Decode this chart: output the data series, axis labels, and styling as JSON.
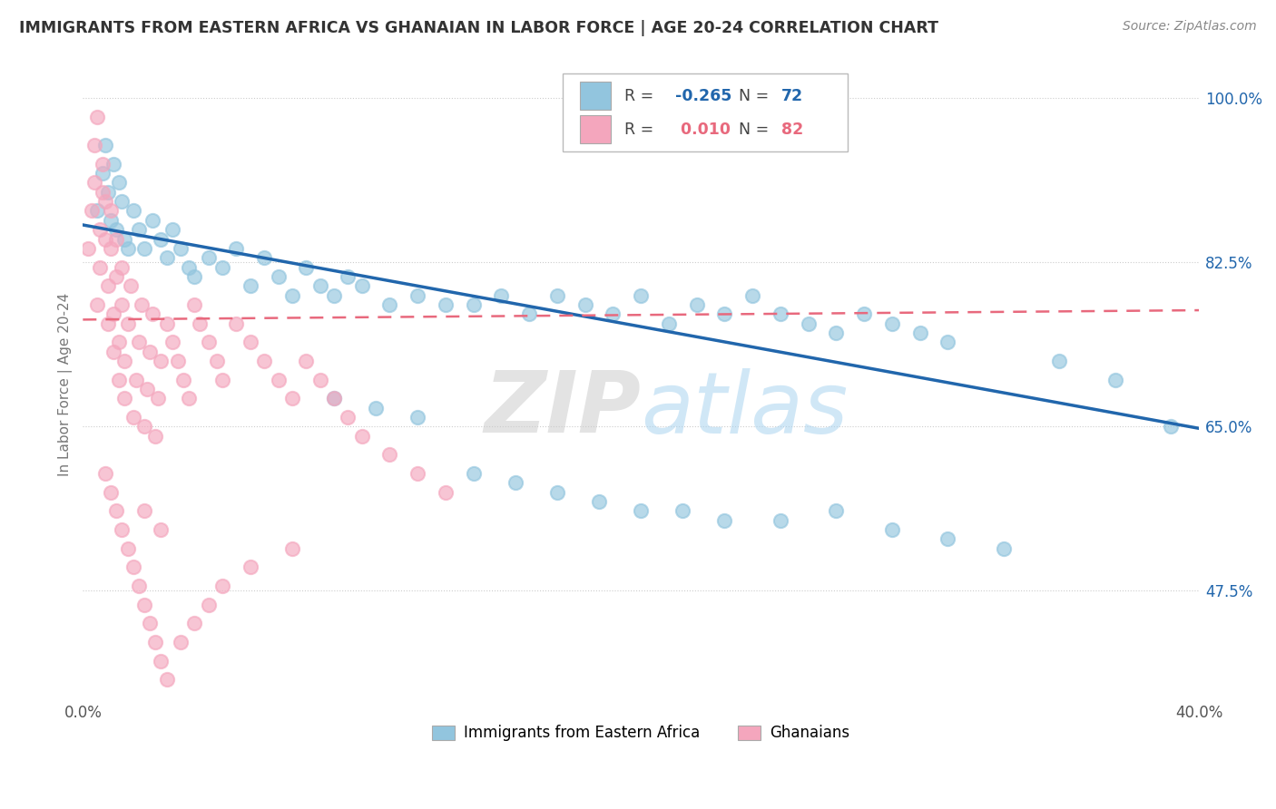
{
  "title": "IMMIGRANTS FROM EASTERN AFRICA VS GHANAIAN IN LABOR FORCE | AGE 20-24 CORRELATION CHART",
  "source_text": "Source: ZipAtlas.com",
  "ylabel": "In Labor Force | Age 20-24",
  "blue_label": "Immigrants from Eastern Africa",
  "pink_label": "Ghanaians",
  "blue_R": -0.265,
  "blue_N": 72,
  "pink_R": 0.01,
  "pink_N": 82,
  "blue_color": "#92c5de",
  "pink_color": "#f4a6bd",
  "blue_line_color": "#2166ac",
  "pink_line_color": "#e8697d",
  "xlim": [
    0.0,
    0.4
  ],
  "ylim": [
    0.36,
    1.03
  ],
  "yticks": [
    0.475,
    0.65,
    0.825,
    1.0
  ],
  "ytick_labels": [
    "47.5%",
    "65.0%",
    "82.5%",
    "100.0%"
  ],
  "xtick_labels": [
    "0.0%",
    "",
    "",
    "",
    "",
    "",
    "",
    "",
    "40.0%"
  ],
  "blue_x": [
    0.005,
    0.007,
    0.008,
    0.009,
    0.01,
    0.011,
    0.012,
    0.013,
    0.014,
    0.015,
    0.016,
    0.018,
    0.02,
    0.022,
    0.025,
    0.028,
    0.03,
    0.032,
    0.035,
    0.038,
    0.04,
    0.045,
    0.05,
    0.055,
    0.06,
    0.065,
    0.07,
    0.075,
    0.08,
    0.085,
    0.09,
    0.095,
    0.1,
    0.11,
    0.12,
    0.13,
    0.14,
    0.15,
    0.16,
    0.17,
    0.18,
    0.19,
    0.2,
    0.21,
    0.22,
    0.23,
    0.24,
    0.25,
    0.26,
    0.27,
    0.28,
    0.29,
    0.3,
    0.31,
    0.14,
    0.155,
    0.17,
    0.185,
    0.2,
    0.215,
    0.23,
    0.25,
    0.27,
    0.29,
    0.31,
    0.33,
    0.09,
    0.105,
    0.12,
    0.35,
    0.37,
    0.39
  ],
  "blue_y": [
    0.88,
    0.92,
    0.95,
    0.9,
    0.87,
    0.93,
    0.86,
    0.91,
    0.89,
    0.85,
    0.84,
    0.88,
    0.86,
    0.84,
    0.87,
    0.85,
    0.83,
    0.86,
    0.84,
    0.82,
    0.81,
    0.83,
    0.82,
    0.84,
    0.8,
    0.83,
    0.81,
    0.79,
    0.82,
    0.8,
    0.79,
    0.81,
    0.8,
    0.78,
    0.79,
    0.78,
    0.78,
    0.79,
    0.77,
    0.79,
    0.78,
    0.77,
    0.79,
    0.76,
    0.78,
    0.77,
    0.79,
    0.77,
    0.76,
    0.75,
    0.77,
    0.76,
    0.75,
    0.74,
    0.6,
    0.59,
    0.58,
    0.57,
    0.56,
    0.56,
    0.55,
    0.55,
    0.56,
    0.54,
    0.53,
    0.52,
    0.68,
    0.67,
    0.66,
    0.72,
    0.7,
    0.65
  ],
  "pink_x": [
    0.002,
    0.003,
    0.004,
    0.004,
    0.005,
    0.005,
    0.006,
    0.006,
    0.007,
    0.007,
    0.008,
    0.008,
    0.009,
    0.009,
    0.01,
    0.01,
    0.011,
    0.011,
    0.012,
    0.012,
    0.013,
    0.013,
    0.014,
    0.014,
    0.015,
    0.015,
    0.016,
    0.017,
    0.018,
    0.019,
    0.02,
    0.021,
    0.022,
    0.023,
    0.024,
    0.025,
    0.026,
    0.027,
    0.028,
    0.03,
    0.032,
    0.034,
    0.036,
    0.038,
    0.04,
    0.042,
    0.045,
    0.048,
    0.05,
    0.055,
    0.06,
    0.065,
    0.07,
    0.075,
    0.08,
    0.085,
    0.09,
    0.095,
    0.1,
    0.11,
    0.12,
    0.13,
    0.008,
    0.01,
    0.012,
    0.014,
    0.016,
    0.018,
    0.02,
    0.022,
    0.024,
    0.026,
    0.028,
    0.03,
    0.035,
    0.04,
    0.045,
    0.05,
    0.06,
    0.075,
    0.022,
    0.028
  ],
  "pink_y": [
    0.84,
    0.88,
    0.91,
    0.95,
    0.98,
    0.78,
    0.82,
    0.86,
    0.9,
    0.93,
    0.85,
    0.89,
    0.76,
    0.8,
    0.84,
    0.88,
    0.73,
    0.77,
    0.81,
    0.85,
    0.7,
    0.74,
    0.78,
    0.82,
    0.68,
    0.72,
    0.76,
    0.8,
    0.66,
    0.7,
    0.74,
    0.78,
    0.65,
    0.69,
    0.73,
    0.77,
    0.64,
    0.68,
    0.72,
    0.76,
    0.74,
    0.72,
    0.7,
    0.68,
    0.78,
    0.76,
    0.74,
    0.72,
    0.7,
    0.76,
    0.74,
    0.72,
    0.7,
    0.68,
    0.72,
    0.7,
    0.68,
    0.66,
    0.64,
    0.62,
    0.6,
    0.58,
    0.6,
    0.58,
    0.56,
    0.54,
    0.52,
    0.5,
    0.48,
    0.46,
    0.44,
    0.42,
    0.4,
    0.38,
    0.42,
    0.44,
    0.46,
    0.48,
    0.5,
    0.52,
    0.56,
    0.54
  ],
  "blue_trend_x0": 0.0,
  "blue_trend_y0": 0.865,
  "blue_trend_x1": 0.4,
  "blue_trend_y1": 0.648,
  "pink_trend_x0": 0.0,
  "pink_trend_y0": 0.764,
  "pink_trend_x1": 0.4,
  "pink_trend_y1": 0.774
}
